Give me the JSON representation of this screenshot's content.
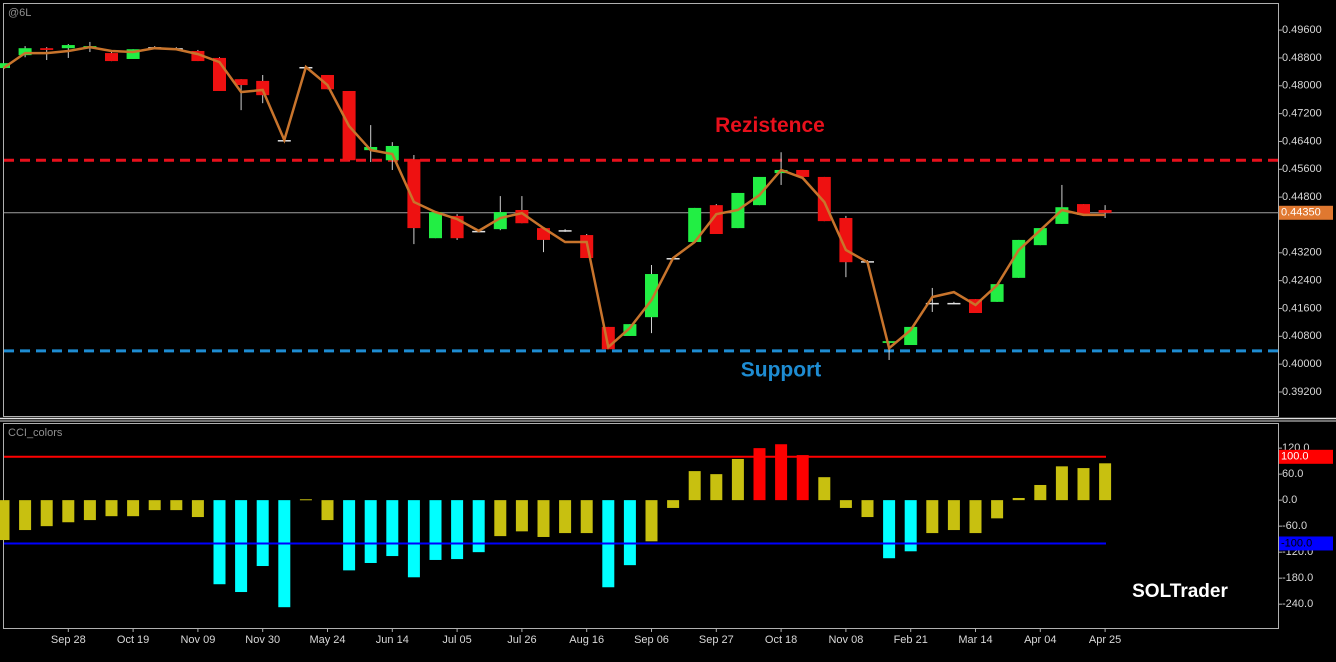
{
  "chart_data": [
    {
      "type": "candlestick",
      "title": "@6L",
      "categories": [
        null,
        null,
        null,
        "Sep 28",
        null,
        null,
        "Oct 19",
        null,
        null,
        "Nov 09",
        null,
        null,
        "Nov 30",
        null,
        null,
        "May 24",
        null,
        null,
        "Jun 14",
        null,
        null,
        "Jul 05",
        null,
        null,
        "Jul 26",
        null,
        null,
        "Aug 16",
        null,
        null,
        "Sep 06",
        null,
        null,
        "Sep 27",
        null,
        null,
        "Oct 18",
        null,
        null,
        "Nov 08",
        null,
        null,
        "Feb 21",
        null,
        null,
        "Mar 14",
        null,
        null,
        "Apr 04",
        null,
        null,
        "Apr 25"
      ],
      "open": [
        0.4851,
        0.4888,
        0.4908,
        0.4908,
        0.4908,
        0.4894,
        0.4877,
        0.4911,
        0.4908,
        0.49,
        0.488,
        0.4819,
        0.4814,
        0.4644,
        0.4854,
        0.4831,
        0.4785,
        0.4615,
        0.4586,
        0.4589,
        0.4362,
        0.4426,
        0.4383,
        0.4388,
        0.4443,
        0.4391,
        0.4385,
        0.4371,
        0.4107,
        0.4081,
        0.4135,
        0.4305,
        0.4351,
        0.4457,
        0.4391,
        0.4457,
        0.4549,
        0.4558,
        0.4538,
        0.442,
        0.4296,
        0.4061,
        0.4055,
        0.4176,
        0.4176,
        0.4187,
        0.4179,
        0.4248,
        0.4342,
        0.4403,
        0.446,
        0.4443
      ],
      "high": [
        0.4865,
        0.4914,
        0.4911,
        0.492,
        0.4926,
        0.4897,
        0.4905,
        0.4914,
        0.4911,
        0.4903,
        0.4882,
        0.4819,
        0.4831,
        0.4647,
        0.4857,
        0.4831,
        0.4785,
        0.4687,
        0.4638,
        0.4601,
        0.4437,
        0.4431,
        0.4385,
        0.4483,
        0.4483,
        0.4391,
        0.4388,
        0.4374,
        0.4107,
        0.4115,
        0.4285,
        0.4308,
        0.4449,
        0.446,
        0.4492,
        0.4538,
        0.4609,
        0.4558,
        0.4538,
        0.4426,
        0.4299,
        0.4066,
        0.4107,
        0.4219,
        0.4179,
        0.4187,
        0.423,
        0.4357,
        0.4391,
        0.4515,
        0.446,
        0.4457
      ],
      "low": [
        0.4851,
        0.4882,
        0.4874,
        0.488,
        0.4897,
        0.4871,
        0.4877,
        0.4908,
        0.4905,
        0.4871,
        0.4785,
        0.473,
        0.475,
        0.4641,
        0.4851,
        0.479,
        0.4586,
        0.4581,
        0.4558,
        0.4345,
        0.4362,
        0.4357,
        0.438,
        0.4385,
        0.4405,
        0.4322,
        0.438,
        0.4305,
        0.4043,
        0.4081,
        0.4089,
        0.4302,
        0.4351,
        0.4374,
        0.4391,
        0.4457,
        0.4515,
        0.4538,
        0.4411,
        0.425,
        0.4293,
        0.4012,
        0.4055,
        0.415,
        0.4173,
        0.4147,
        0.4179,
        0.4248,
        0.4342,
        0.4403,
        0.4429,
        0.442
      ],
      "close": [
        0.4865,
        0.4908,
        0.4903,
        0.4917,
        0.4914,
        0.4871,
        0.4905,
        0.4911,
        0.4908,
        0.4871,
        0.4785,
        0.4802,
        0.4773,
        0.4644,
        0.4854,
        0.479,
        0.4586,
        0.4624,
        0.4627,
        0.4391,
        0.4437,
        0.4362,
        0.4383,
        0.4437,
        0.4405,
        0.4357,
        0.4385,
        0.4305,
        0.4043,
        0.4115,
        0.4259,
        0.4305,
        0.4449,
        0.4374,
        0.4492,
        0.4538,
        0.4558,
        0.4538,
        0.4411,
        0.4293,
        0.4296,
        0.4066,
        0.4107,
        0.4176,
        0.4176,
        0.4147,
        0.423,
        0.4357,
        0.4391,
        0.4451,
        0.4429,
        0.4435
      ],
      "up_color": "#22ee44",
      "down_color": "#ee1111",
      "doji_color": "#e0e0e0",
      "overlay": {
        "color": "#c8742c",
        "values": [
          0.4851,
          0.4894,
          0.4894,
          0.49,
          0.4911,
          0.49,
          0.4897,
          0.4908,
          0.4905,
          0.4891,
          0.4868,
          0.4782,
          0.4788,
          0.4644,
          0.4854,
          0.4802,
          0.4684,
          0.4615,
          0.4604,
          0.4466,
          0.4437,
          0.4417,
          0.4383,
          0.442,
          0.4434,
          0.4391,
          0.4351,
          0.4351,
          0.4049,
          0.4104,
          0.4184,
          0.4305,
          0.4351,
          0.4431,
          0.4443,
          0.4486,
          0.4558,
          0.4535,
          0.4466,
          0.4328,
          0.4293,
          0.4046,
          0.4098,
          0.4193,
          0.4207,
          0.417,
          0.4227,
          0.4328,
          0.4385,
          0.4443,
          0.4429,
          0.4429
        ]
      },
      "annotations": [
        {
          "text": "Rezistence",
          "value": 0.4586,
          "color": "#e8101c"
        },
        {
          "text": "Support",
          "value": 0.4038,
          "color": "#1e8cd2"
        }
      ],
      "last_price": {
        "value": 0.4435,
        "label": "0.44350",
        "color": "#e07830"
      },
      "ylim": [
        0.3851,
        0.5035
      ],
      "yticks": [
        {
          "value": 0.496,
          "label": "0.49600"
        },
        {
          "value": 0.488,
          "label": "0.48800"
        },
        {
          "value": 0.48,
          "label": "0.48000"
        },
        {
          "value": 0.472,
          "label": "0.47200"
        },
        {
          "value": 0.464,
          "label": "0.46400"
        },
        {
          "value": 0.456,
          "label": "0.45600"
        },
        {
          "value": 0.448,
          "label": "0.44800"
        },
        {
          "value": 0.432,
          "label": "0.43200"
        },
        {
          "value": 0.424,
          "label": "0.42400"
        },
        {
          "value": 0.416,
          "label": "0.41600"
        },
        {
          "value": 0.408,
          "label": "0.40800"
        },
        {
          "value": 0.4,
          "label": "0.40000"
        },
        {
          "value": 0.392,
          "label": "0.39200"
        }
      ]
    },
    {
      "type": "bar",
      "title": "CCI_colors",
      "values": [
        -92,
        -69,
        -60,
        -51,
        -46,
        -37,
        -37,
        -23,
        -23,
        -39,
        -194,
        -212,
        -152,
        -247,
        2,
        -46,
        -162,
        -145,
        -129,
        -178,
        -138,
        -136,
        -120,
        -83,
        -72,
        -85,
        -76,
        -76,
        -201,
        -150,
        -95,
        -18,
        67,
        60,
        95,
        120,
        129,
        104,
        53,
        -18,
        -39,
        -134,
        -118,
        -76,
        -69,
        -76,
        -42,
        5,
        35,
        78,
        74,
        85
      ],
      "colors": {
        "high": "#ff0000",
        "low": "#00ffff",
        "mid": "#c8c010"
      },
      "levels": [
        {
          "value": 100,
          "label": "100.0",
          "color": "#ff0000"
        },
        {
          "value": -100,
          "label": "-100.0",
          "color": "#0000ff"
        }
      ],
      "annotation": "SOLTrader",
      "ylim": [
        -295,
        178
      ],
      "yticks": [
        {
          "value": 120,
          "label": "120.0"
        },
        {
          "value": 60,
          "label": "60.0"
        },
        {
          "value": 0,
          "label": "0.0"
        },
        {
          "value": -60,
          "label": "-60.0"
        },
        {
          "value": -120,
          "label": "-120.0"
        },
        {
          "value": -180,
          "label": "-180.0"
        },
        {
          "value": -240,
          "label": "-240.0"
        }
      ]
    }
  ]
}
